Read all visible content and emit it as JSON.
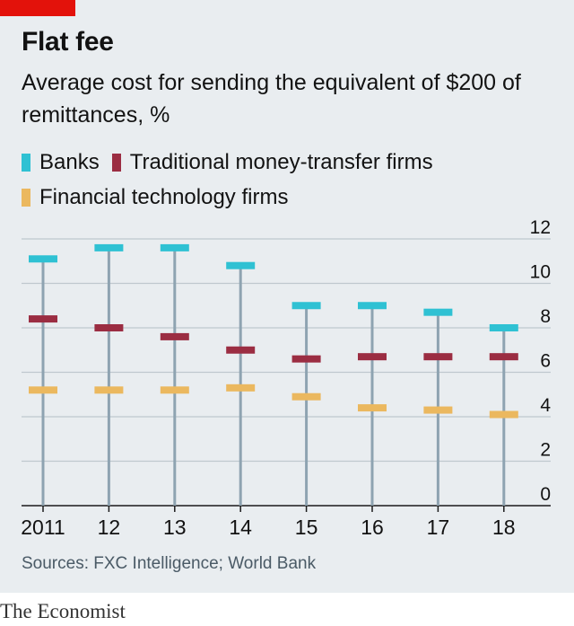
{
  "header": {
    "title": "Flat fee",
    "subtitle": "Average cost for sending the equivalent of $200 of remittances, %"
  },
  "footer": {
    "source": "Sources: FXC Intelligence; World Bank",
    "brand": "The Economist"
  },
  "colors": {
    "background": "#e9edf0",
    "accent_tab": "#e3120b",
    "banks": "#2fc1d3",
    "traditional": "#9b2d42",
    "fintech": "#ebb85f",
    "range_line": "#8ea3b1",
    "grid": "#bfc8ce"
  },
  "chart_data": {
    "type": "range-dot",
    "categories": [
      "2011",
      "12",
      "13",
      "14",
      "15",
      "16",
      "17",
      "18"
    ],
    "series": [
      {
        "name": "Banks",
        "values": [
          11.1,
          11.6,
          11.6,
          10.8,
          9.0,
          9.0,
          8.7,
          8.0
        ]
      },
      {
        "name": "Traditional money-transfer firms",
        "values": [
          8.4,
          8.0,
          7.6,
          7.0,
          6.6,
          6.7,
          6.7,
          6.7
        ]
      },
      {
        "name": "Financial technology firms",
        "values": [
          5.2,
          5.2,
          5.2,
          5.3,
          4.9,
          4.4,
          4.3,
          4.1
        ]
      }
    ],
    "ylim": [
      0,
      12
    ],
    "yticks": [
      0,
      2,
      4,
      6,
      8,
      10,
      12
    ],
    "grid": true,
    "legend": "top-left"
  }
}
